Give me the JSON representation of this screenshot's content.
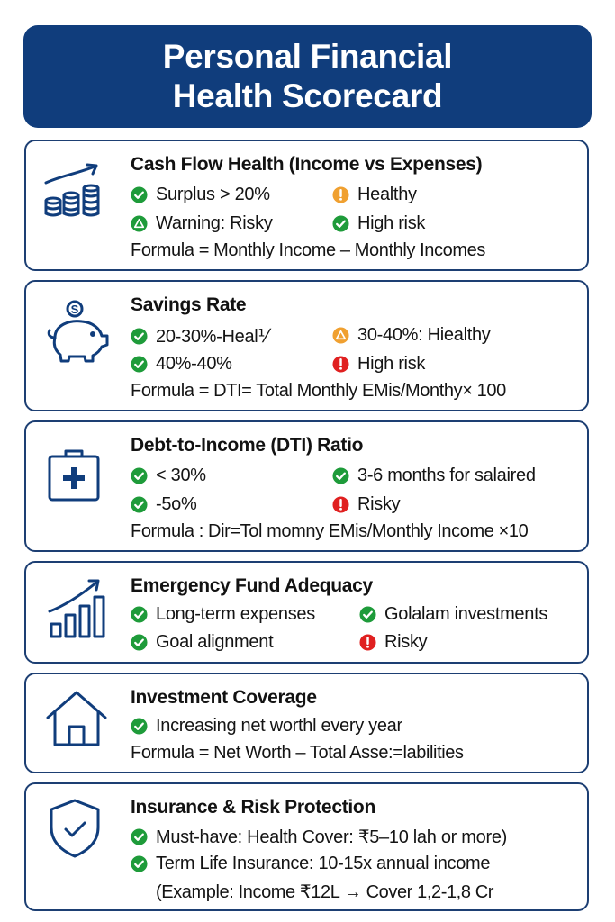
{
  "header": {
    "line1": "Personal Financial",
    "line2": "Health Scorecard"
  },
  "colors": {
    "navy": "#103d7c",
    "good": "#1e9b3a",
    "warn": "#f0a030",
    "bad": "#e02020"
  },
  "cards": [
    {
      "icon": "coins-growth-icon",
      "title": "Cash Flow Health (Income vs Expenses)",
      "items": [
        {
          "status": "check",
          "text": "Surplus > 20%"
        },
        {
          "status": "exclaim-warn",
          "text": "Healthy"
        },
        {
          "status": "triangle",
          "text": "Warning: Risky"
        },
        {
          "status": "check",
          "text": "High risk"
        }
      ],
      "formula": "Formula = Monthly Income – Monthly Incomes"
    },
    {
      "icon": "piggy-bank-icon",
      "title": "Savings Rate",
      "items": [
        {
          "status": "check",
          "text": "20-30%-Heal⅟"
        },
        {
          "status": "triangle-warn",
          "text": "30-40%: Hiealthy"
        },
        {
          "status": "check",
          "text": "40%-40%"
        },
        {
          "status": "exclaim-bad",
          "text": "High risk"
        }
      ],
      "formula": "Formula = DTI= Total Monthly EMis/Monthy× 100"
    },
    {
      "icon": "medical-kit-icon",
      "title": "Debt-to-Income (DTI) Ratio",
      "items": [
        {
          "status": "check",
          "text": "< 30%"
        },
        {
          "status": "check",
          "text": "3-6 months for salaired"
        },
        {
          "status": "check",
          "text": "-5o%"
        },
        {
          "status": "exclaim-bad",
          "text": "Risky"
        }
      ],
      "formula": "Formula : Dir=Tol momny EMis/Monthly Income ×10"
    },
    {
      "icon": "bar-growth-icon",
      "title": "Emergency Fund Adequacy",
      "items": [
        {
          "status": "check",
          "text": "Long-term expenses"
        },
        {
          "status": "check",
          "text": "Golalam investments"
        },
        {
          "status": "check",
          "text": "Goal alignment"
        },
        {
          "status": "exclaim-bad",
          "text": "Risky"
        }
      ]
    },
    {
      "icon": "house-icon",
      "title": "Investment Coverage",
      "items": [
        {
          "status": "check",
          "text": "Increasing net worthl every year"
        }
      ],
      "formula": "Formula = Net Worth – Total Asse:=labilities"
    },
    {
      "icon": "shield-check-icon",
      "title": "Insurance & Risk Protection",
      "items": [
        {
          "status": "check",
          "text": "Must-have: Health Cover: ₹5–10 lah or more)"
        },
        {
          "status": "check",
          "text": "Term Life Insurance: 10-15x annual income"
        }
      ],
      "note": "(Example: Income ₹12L → Cover 1,2-1,8 Cr"
    }
  ]
}
